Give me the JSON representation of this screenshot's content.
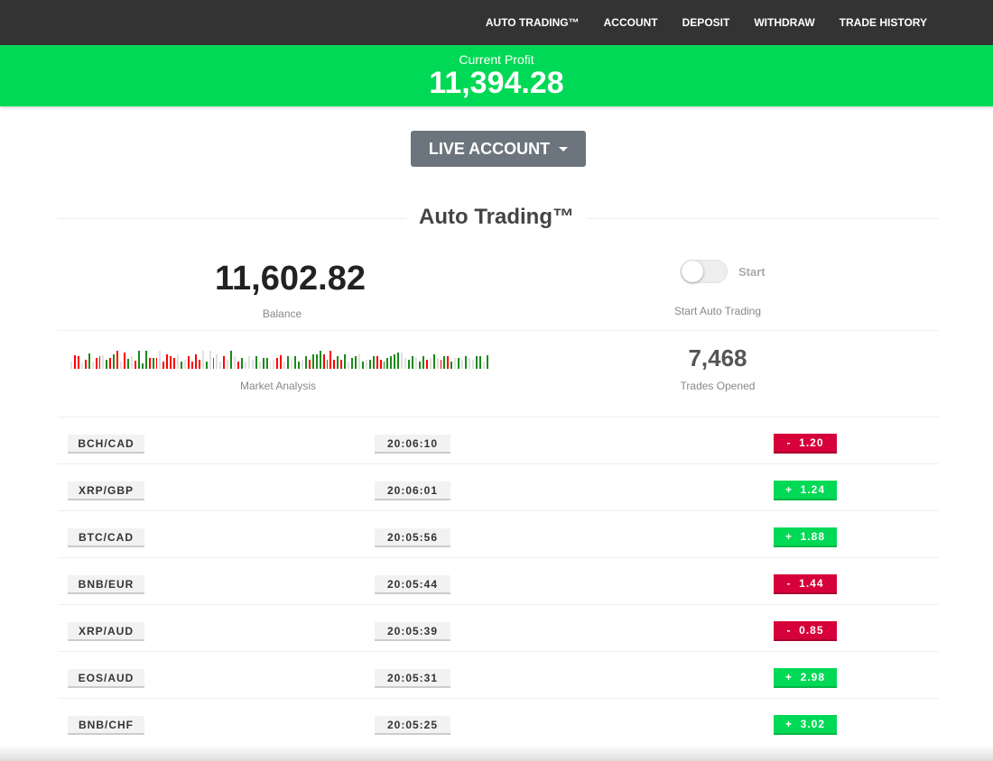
{
  "nav": [
    "AUTO TRADING™",
    "ACCOUNT",
    "DEPOSIT",
    "WITHDRAW",
    "TRADE HISTORY"
  ],
  "profit": {
    "label": "Current Profit",
    "value": "11,394.28"
  },
  "account_button": "LIVE ACCOUNT",
  "section_title": "Auto Trading™",
  "balance": {
    "value": "11,602.82",
    "label": "Balance"
  },
  "toggle": {
    "label": "Start",
    "caption": "Start Auto Trading",
    "on": false
  },
  "market": {
    "label": "Market Analysis",
    "colors": {
      "up": "#1a8a1a",
      "down": "#ff0000",
      "neutral": "#e0e0e0"
    }
  },
  "trades": {
    "value": "7,468",
    "label": "Trades Opened"
  },
  "colors": {
    "positive": "#00d955",
    "negative": "#d6003a",
    "header": "#333333",
    "banner": "#00d955"
  },
  "rows": [
    {
      "pair": "BCH/CAD",
      "time": "20:06:10",
      "amount": "-  1.20",
      "dir": "down"
    },
    {
      "pair": "XRP/GBP",
      "time": "20:06:01",
      "amount": "+  1.24",
      "dir": "up"
    },
    {
      "pair": "BTC/CAD",
      "time": "20:05:56",
      "amount": "+  1.88",
      "dir": "up"
    },
    {
      "pair": "BNB/EUR",
      "time": "20:05:44",
      "amount": "-  1.44",
      "dir": "down"
    },
    {
      "pair": "XRP/AUD",
      "time": "20:05:39",
      "amount": "-  0.85",
      "dir": "down"
    },
    {
      "pair": "EOS/AUD",
      "time": "20:05:31",
      "amount": "+  2.98",
      "dir": "up"
    },
    {
      "pair": "BNB/CHF",
      "time": "20:05:25",
      "amount": "+  3.02",
      "dir": "up"
    }
  ]
}
